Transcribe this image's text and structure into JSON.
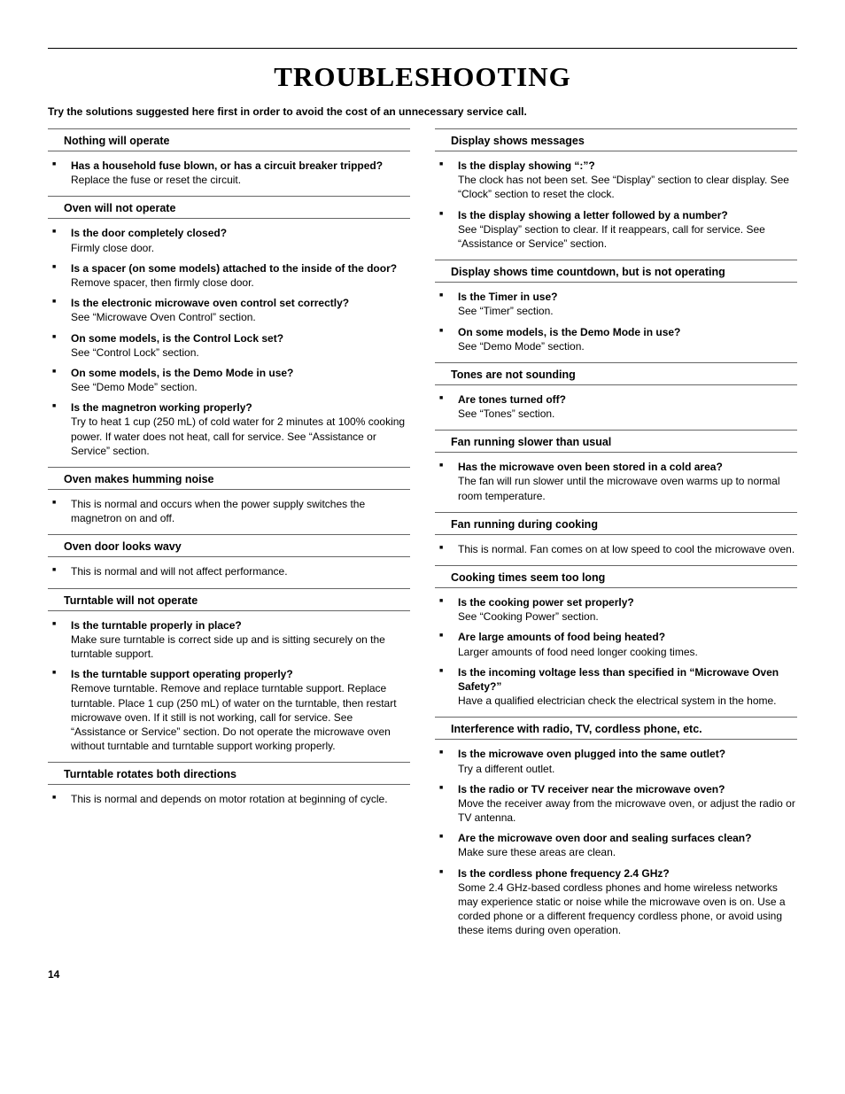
{
  "title": "TROUBLESHOOTING",
  "intro": "Try the solutions suggested here first in order to avoid the cost of an unnecessary service call.",
  "pageNumber": "14",
  "colors": {
    "text": "#000000",
    "background": "#ffffff",
    "rule": "#666666"
  },
  "leftColumn": [
    {
      "heading": "Nothing will operate",
      "items": [
        {
          "q": "Has a household fuse blown, or has a circuit breaker tripped?",
          "a": "Replace the fuse or reset the circuit."
        }
      ]
    },
    {
      "heading": "Oven will not operate",
      "items": [
        {
          "q": "Is the door completely closed?",
          "a": "Firmly close door."
        },
        {
          "q": "Is a spacer (on some models) attached to the inside of the door?",
          "a": "Remove spacer, then firmly close door."
        },
        {
          "q": "Is the electronic microwave oven control set correctly?",
          "a": "See “Microwave Oven Control” section."
        },
        {
          "q": "On some models, is the Control Lock set?",
          "a": "See “Control Lock” section."
        },
        {
          "q": "On some models, is the Demo Mode in use?",
          "a": "See “Demo Mode” section."
        },
        {
          "q": "Is the magnetron working properly?",
          "a": "Try to heat 1 cup (250 mL) of cold water for 2 minutes at 100% cooking power. If water does not heat, call for service. See “Assistance or Service” section."
        }
      ]
    },
    {
      "heading": "Oven makes humming noise",
      "items": [
        {
          "q": "",
          "a": "This is normal and occurs when the power supply switches the magnetron on and off."
        }
      ]
    },
    {
      "heading": "Oven door looks wavy",
      "items": [
        {
          "q": "",
          "a": "This is normal and will not affect performance."
        }
      ]
    },
    {
      "heading": "Turntable will not operate",
      "items": [
        {
          "q": "Is the turntable properly in place?",
          "a": "Make sure turntable is correct side up and is sitting securely on the turntable support."
        },
        {
          "q": "Is the turntable support operating properly?",
          "a": "Remove turntable. Remove and replace turntable support. Replace turntable. Place 1 cup (250 mL) of water on the turntable, then restart microwave oven. If it still is not working, call for service. See “Assistance or Service” section. Do not operate the microwave oven without turntable and turntable support working properly."
        }
      ]
    },
    {
      "heading": "Turntable rotates both directions",
      "items": [
        {
          "q": "",
          "a": "This is normal and depends on motor rotation at beginning of cycle."
        }
      ]
    }
  ],
  "rightColumn": [
    {
      "heading": "Display shows messages",
      "items": [
        {
          "q": "Is the display showing “:”?",
          "a": "The clock has not been set. See “Display” section to clear display. See “Clock” section to reset the clock."
        },
        {
          "q": "Is the display showing a letter followed by a number?",
          "a": "See “Display” section to clear. If it reappears, call for service. See “Assistance or Service” section."
        }
      ]
    },
    {
      "heading": "Display shows time countdown, but is not operating",
      "items": [
        {
          "q": "Is the Timer in use?",
          "a": "See “Timer” section."
        },
        {
          "q": "On some models, is the Demo Mode in use?",
          "a": "See “Demo Mode” section."
        }
      ]
    },
    {
      "heading": "Tones are not sounding",
      "items": [
        {
          "q": "Are tones turned off?",
          "a": "See “Tones” section."
        }
      ]
    },
    {
      "heading": "Fan running slower than usual",
      "items": [
        {
          "q": "Has the microwave oven been stored in a cold area?",
          "a": "The fan will run slower until the microwave oven warms up to normal room temperature."
        }
      ]
    },
    {
      "heading": "Fan running during cooking",
      "items": [
        {
          "q": "",
          "a": "This is normal. Fan comes on at low speed to cool the microwave oven."
        }
      ]
    },
    {
      "heading": "Cooking times seem too long",
      "items": [
        {
          "q": "Is the cooking power set properly?",
          "a": "See “Cooking Power” section."
        },
        {
          "q": "Are large amounts of food being heated?",
          "a": "Larger amounts of food need longer cooking times."
        },
        {
          "q": "Is the incoming voltage less than specified in “Microwave Oven Safety?”",
          "a": "Have a qualified electrician check the electrical system in the home."
        }
      ]
    },
    {
      "heading": "Interference with radio, TV, cordless phone, etc.",
      "items": [
        {
          "q": "Is the microwave oven plugged into the same outlet?",
          "a": "Try a different outlet."
        },
        {
          "q": "Is the radio or TV receiver near the microwave oven?",
          "a": "Move the receiver away from the microwave oven, or adjust the radio or TV antenna."
        },
        {
          "q": "Are the microwave oven door and sealing surfaces clean?",
          "a": "Make sure these areas are clean."
        },
        {
          "q": "Is the cordless phone frequency 2.4 GHz?",
          "a": "Some 2.4 GHz-based cordless phones and home wireless networks may experience static or noise while the microwave oven is on. Use a corded phone or a different frequency cordless phone, or avoid using these items during oven operation."
        }
      ]
    }
  ]
}
